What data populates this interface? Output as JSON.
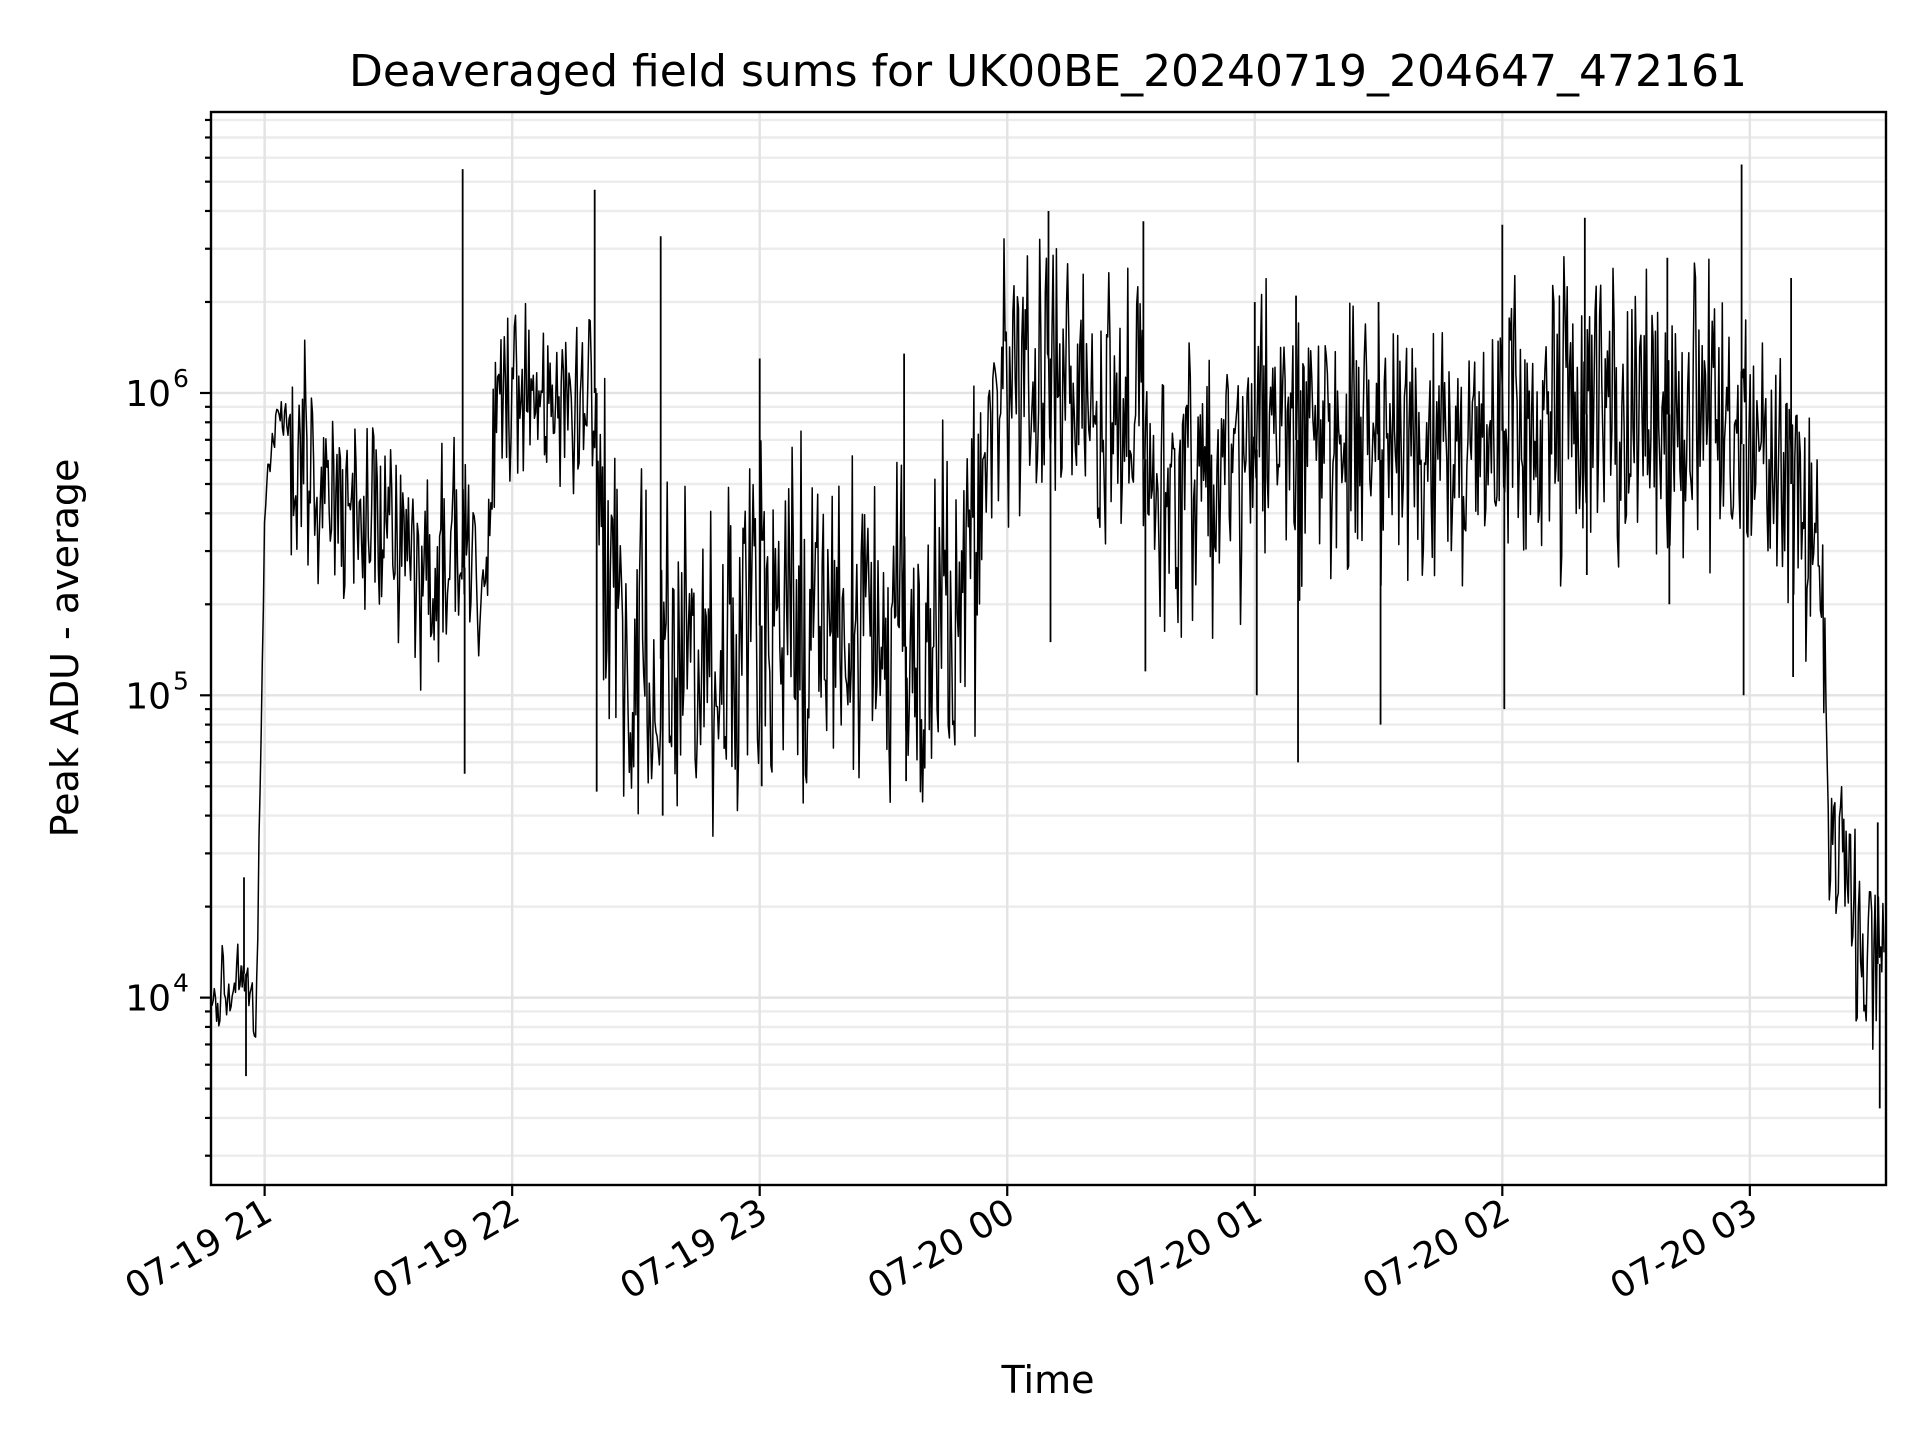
{
  "chart_data": {
    "type": "line",
    "title": "Deaveraged field sums for UK00BE_20240719_204647_472161",
    "xlabel": "Time",
    "ylabel": "Peak ADU - average",
    "yscale": "log",
    "ylim": [
      2400,
      8500000
    ],
    "xlim": [
      "2024-07-19 20:47",
      "2024-07-20 03:33"
    ],
    "grid": true,
    "line_color": "#000000",
    "x_ticks": [
      {
        "label": "07-19 21",
        "value": "2024-07-19 21:00"
      },
      {
        "label": "07-19 22",
        "value": "2024-07-19 22:00"
      },
      {
        "label": "07-19 23",
        "value": "2024-07-19 23:00"
      },
      {
        "label": "07-20 00",
        "value": "2024-07-20 00:00"
      },
      {
        "label": "07-20 01",
        "value": "2024-07-20 01:00"
      },
      {
        "label": "07-20 02",
        "value": "2024-07-20 02:00"
      },
      {
        "label": "07-20 03",
        "value": "2024-07-20 03:00"
      }
    ],
    "y_ticks": [
      {
        "base": "10",
        "exp": "4",
        "value": 10000
      },
      {
        "base": "10",
        "exp": "5",
        "value": 100000
      },
      {
        "base": "10",
        "exp": "6",
        "value": 1000000
      }
    ],
    "series": [
      {
        "x": [
          "2024-07-19 20:47",
          "2024-07-19 20:50",
          "2024-07-19 20:53",
          "2024-07-19 20:55",
          "2024-07-19 20:57",
          "2024-07-19 20:58",
          "2024-07-19 20:59",
          "2024-07-19 21:00",
          "2024-07-19 21:02",
          "2024-07-19 21:04",
          "2024-07-19 21:06",
          "2024-07-19 21:10",
          "2024-07-19 21:15",
          "2024-07-19 21:20",
          "2024-07-19 21:25",
          "2024-07-19 21:30",
          "2024-07-19 21:33",
          "2024-07-19 21:38",
          "2024-07-19 21:42",
          "2024-07-19 21:46",
          "2024-07-19 21:50",
          "2024-07-19 21:53",
          "2024-07-19 21:56",
          "2024-07-19 22:00",
          "2024-07-19 22:05",
          "2024-07-19 22:10",
          "2024-07-19 22:15",
          "2024-07-19 22:20",
          "2024-07-19 22:22",
          "2024-07-19 22:25",
          "2024-07-19 22:30",
          "2024-07-19 22:35",
          "2024-07-19 22:40",
          "2024-07-19 22:45",
          "2024-07-19 22:50",
          "2024-07-19 22:55",
          "2024-07-19 23:00",
          "2024-07-19 23:10",
          "2024-07-19 23:20",
          "2024-07-19 23:30",
          "2024-07-19 23:40",
          "2024-07-19 23:50",
          "2024-07-19 23:55",
          "2024-07-20 00:00",
          "2024-07-20 00:05",
          "2024-07-20 00:10",
          "2024-07-20 00:15",
          "2024-07-20 00:20",
          "2024-07-20 00:25",
          "2024-07-20 00:30",
          "2024-07-20 00:35",
          "2024-07-20 00:40",
          "2024-07-20 00:45",
          "2024-07-20 00:50",
          "2024-07-20 00:55",
          "2024-07-20 01:00",
          "2024-07-20 01:10",
          "2024-07-20 01:20",
          "2024-07-20 01:30",
          "2024-07-20 01:40",
          "2024-07-20 01:50",
          "2024-07-20 02:00",
          "2024-07-20 02:10",
          "2024-07-20 02:20",
          "2024-07-20 02:30",
          "2024-07-20 02:40",
          "2024-07-20 02:50",
          "2024-07-20 03:00",
          "2024-07-20 03:05",
          "2024-07-20 03:10",
          "2024-07-20 03:14",
          "2024-07-20 03:17",
          "2024-07-20 03:20",
          "2024-07-20 03:23",
          "2024-07-20 03:26",
          "2024-07-20 03:30",
          "2024-07-20 03:33"
        ],
        "values": [
          9000,
          11000,
          13000,
          12000,
          10000,
          9000,
          60000,
          400000,
          700000,
          900000,
          800000,
          600000,
          450000,
          400000,
          450000,
          350000,
          300000,
          250000,
          300000,
          280000,
          250000,
          200000,
          1000000,
          1100000,
          1000000,
          900000,
          800000,
          1000000,
          300000,
          200000,
          150000,
          130000,
          140000,
          150000,
          150000,
          160000,
          170000,
          170000,
          160000,
          150000,
          140000,
          200000,
          600000,
          1200000,
          1300000,
          1300000,
          1200000,
          1000000,
          900000,
          800000,
          500000,
          450000,
          500000,
          550000,
          600000,
          650000,
          700000,
          650000,
          600000,
          650000,
          700000,
          750000,
          800000,
          850000,
          900000,
          850000,
          800000,
          650000,
          550000,
          500000,
          450000,
          300000,
          30000,
          25000,
          15000,
          12000,
          15000
        ]
      }
    ],
    "extremes": {
      "x": [
        "2024-07-19 20:55",
        "2024-07-19 21:48",
        "2024-07-19 22:20",
        "2024-07-19 22:36",
        "2024-07-19 23:00",
        "2024-07-19 23:35",
        "2024-07-20 00:10",
        "2024-07-20 00:33",
        "2024-07-20 01:00",
        "2024-07-20 01:10",
        "2024-07-20 01:30",
        "2024-07-20 02:00",
        "2024-07-20 02:20",
        "2024-07-20 02:40",
        "2024-07-20 02:58",
        "2024-07-20 03:10",
        "2024-07-20 03:31"
      ],
      "high": [
        25000,
        5500000,
        4700000,
        3300000,
        1300000,
        1350000,
        4000000,
        3700000,
        2000000,
        2100000,
        2000000,
        3600000,
        3800000,
        2800000,
        5700000,
        2400000,
        38000
      ],
      "low": [
        5500,
        55000,
        48000,
        40000,
        50000,
        52000,
        150000,
        120000,
        100000,
        60000,
        80000,
        90000,
        250000,
        200000,
        100000,
        115000,
        4300
      ]
    }
  }
}
